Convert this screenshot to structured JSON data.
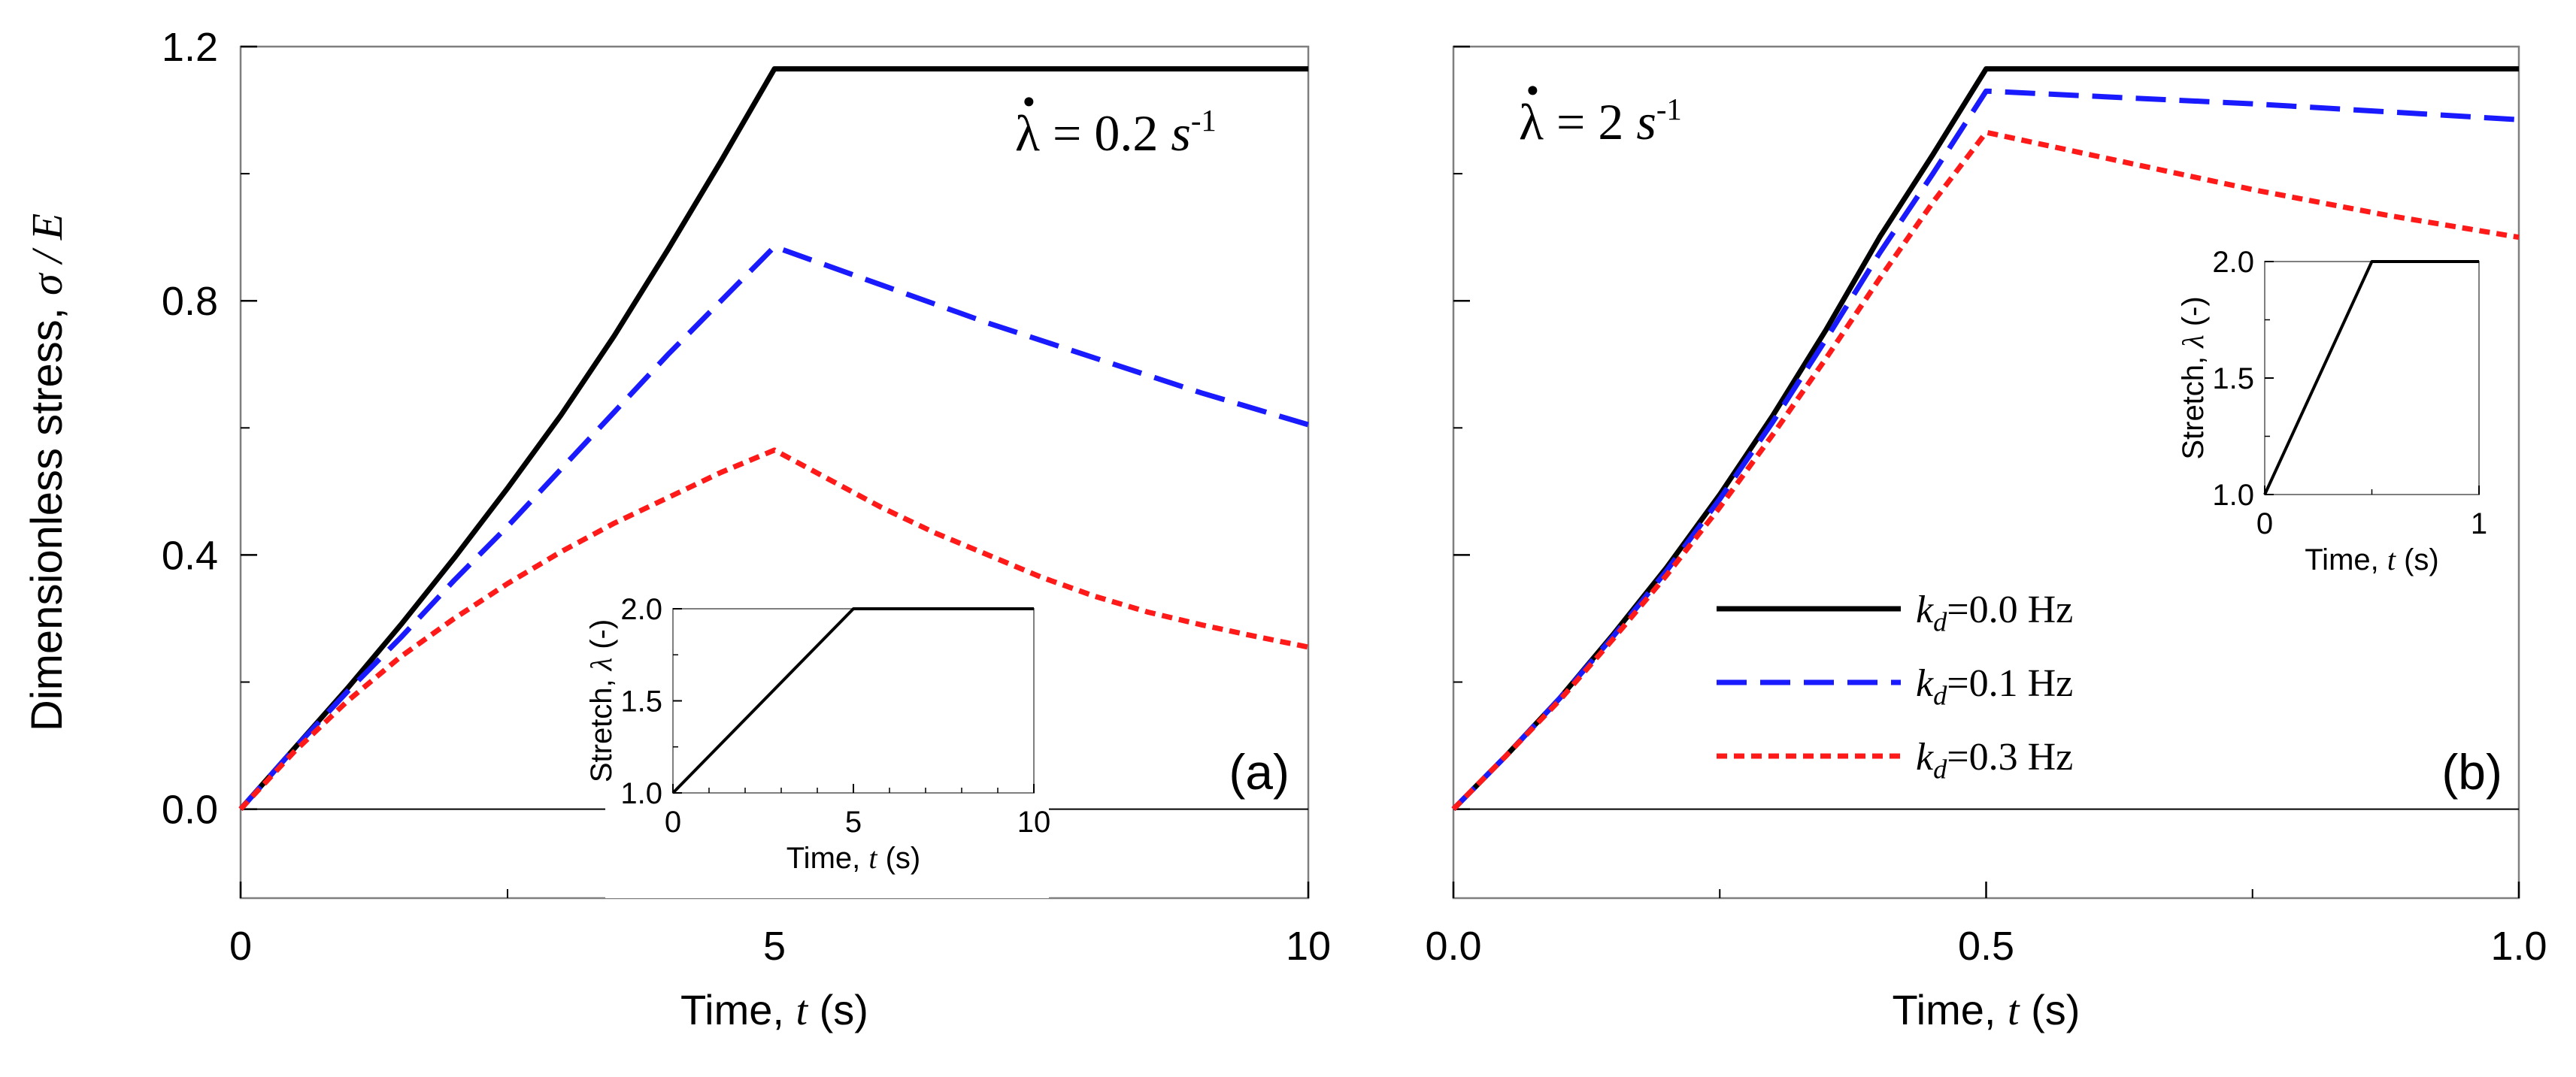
{
  "chart_data": [
    {
      "id": "panel-a",
      "type": "line",
      "panel_label": "(a)",
      "rate_label": {
        "symbol": "λ",
        "text": "= 0.2 ",
        "unit": "s",
        "exponent": "-1"
      },
      "xlabel": {
        "prefix": "Time, ",
        "var": "t",
        "unit": " (s)"
      },
      "ylabel": {
        "prefix": "Dimensionless stress, ",
        "var": "σ / E"
      },
      "xlim": [
        0,
        10
      ],
      "ylim": [
        -0.14,
        1.2
      ],
      "x_ticks": [
        0,
        5,
        10
      ],
      "x_tick_labels": [
        "0",
        "5",
        "10"
      ],
      "x_minor_ticks": [
        2.5,
        7.5
      ],
      "y_ticks": [
        0.0,
        0.4,
        0.8,
        1.2
      ],
      "y_tick_labels": [
        "0.0",
        "0.4",
        "0.8",
        "1.2"
      ],
      "y_minor_ticks": [
        0.2,
        0.6,
        1.0
      ],
      "zero_line": true,
      "series": [
        {
          "name": "k_d=0.0 Hz",
          "style": "solid",
          "color": "#000000",
          "x": [
            0,
            0.5,
            1,
            1.5,
            2,
            2.5,
            3,
            3.5,
            4,
            4.5,
            5,
            10
          ],
          "y": [
            0,
            0.095,
            0.19,
            0.29,
            0.395,
            0.505,
            0.62,
            0.745,
            0.88,
            1.02,
            1.165,
            1.165
          ]
        },
        {
          "name": "k_d=0.1 Hz",
          "style": "dashed",
          "color": "#1a1aff",
          "x": [
            0,
            0.5,
            1,
            1.5,
            2,
            2.5,
            3,
            3.5,
            4,
            4.5,
            5,
            6,
            7,
            8,
            9,
            10
          ],
          "y": [
            0,
            0.095,
            0.185,
            0.27,
            0.36,
            0.445,
            0.535,
            0.625,
            0.715,
            0.8,
            0.885,
            0.825,
            0.765,
            0.71,
            0.655,
            0.605
          ]
        },
        {
          "name": "k_d=0.3 Hz",
          "style": "dotted",
          "color": "#ff1a1a",
          "x": [
            0,
            0.5,
            1,
            1.5,
            2,
            2.5,
            3,
            3.5,
            4,
            4.5,
            5,
            5.5,
            6,
            6.5,
            7,
            7.5,
            8,
            8.5,
            9,
            9.5,
            10
          ],
          "y": [
            0,
            0.09,
            0.17,
            0.24,
            0.3,
            0.355,
            0.405,
            0.45,
            0.49,
            0.53,
            0.565,
            0.52,
            0.475,
            0.435,
            0.4,
            0.365,
            0.335,
            0.31,
            0.29,
            0.272,
            0.255
          ]
        }
      ],
      "inset": {
        "xlabel": {
          "prefix": "Time, ",
          "var": "t",
          "unit": " (s)"
        },
        "ylabel": {
          "prefix": "Stretch, ",
          "var": "λ",
          "unit": " (-)"
        },
        "xlim": [
          0,
          10
        ],
        "ylim": [
          1.0,
          2.0
        ],
        "x_ticks": [
          0,
          5,
          10
        ],
        "x_tick_labels": [
          "0",
          "5",
          "10"
        ],
        "x_minor_ticks": [
          1,
          2,
          3,
          4,
          6,
          7,
          8,
          9
        ],
        "y_ticks": [
          1.0,
          1.5,
          2.0
        ],
        "y_tick_labels": [
          "1.0",
          "1.5",
          "2.0"
        ],
        "y_minor_ticks": [
          1.25,
          1.75
        ],
        "x": [
          0,
          5,
          10
        ],
        "y": [
          1.0,
          2.0,
          2.0
        ]
      }
    },
    {
      "id": "panel-b",
      "type": "line",
      "panel_label": "(b)",
      "rate_label": {
        "symbol": "λ",
        "text": "= 2 ",
        "unit": "s",
        "exponent": "-1"
      },
      "xlabel": {
        "prefix": "Time, ",
        "var": "t",
        "unit": " (s)"
      },
      "xlim": [
        0,
        1.0
      ],
      "ylim": [
        -0.14,
        1.2
      ],
      "x_ticks": [
        0,
        0.5,
        1.0
      ],
      "x_tick_labels": [
        "0.0",
        "0.5",
        "1.0"
      ],
      "x_minor_ticks": [
        0.25,
        0.75
      ],
      "y_ticks": [
        0.0,
        0.4,
        0.8,
        1.2
      ],
      "y_minor_ticks": [
        0.2,
        0.6,
        1.0
      ],
      "zero_line": true,
      "legend": {
        "position": "center-right",
        "entries": [
          {
            "symbol": "k",
            "sub": "d",
            "text": "=0.0 Hz",
            "style": "solid",
            "color": "#000000"
          },
          {
            "symbol": "k",
            "sub": "d",
            "text": "=0.1 Hz",
            "style": "dashed",
            "color": "#1a1aff"
          },
          {
            "symbol": "k",
            "sub": "d",
            "text": "=0.3 Hz",
            "style": "dotted",
            "color": "#ff1a1a"
          }
        ]
      },
      "series": [
        {
          "name": "k_d=0.0 Hz",
          "style": "solid",
          "color": "#000000",
          "x": [
            0,
            0.05,
            0.1,
            0.15,
            0.2,
            0.25,
            0.3,
            0.35,
            0.4,
            0.45,
            0.5,
            1.0
          ],
          "y": [
            0,
            0.085,
            0.175,
            0.275,
            0.38,
            0.495,
            0.62,
            0.755,
            0.9,
            1.03,
            1.165,
            1.165
          ]
        },
        {
          "name": "k_d=0.1 Hz",
          "style": "dashed",
          "color": "#1a1aff",
          "x": [
            0,
            0.05,
            0.1,
            0.15,
            0.2,
            0.25,
            0.3,
            0.35,
            0.4,
            0.45,
            0.5,
            0.75,
            1.0
          ],
          "y": [
            0,
            0.085,
            0.175,
            0.272,
            0.375,
            0.488,
            0.61,
            0.74,
            0.875,
            1.0,
            1.13,
            1.11,
            1.085
          ]
        },
        {
          "name": "k_d=0.3 Hz",
          "style": "dotted",
          "color": "#ff1a1a",
          "x": [
            0,
            0.05,
            0.1,
            0.15,
            0.2,
            0.25,
            0.3,
            0.35,
            0.4,
            0.45,
            0.5,
            0.625,
            0.75,
            0.875,
            1.0
          ],
          "y": [
            0,
            0.085,
            0.172,
            0.268,
            0.368,
            0.475,
            0.59,
            0.71,
            0.835,
            0.955,
            1.065,
            1.02,
            0.975,
            0.935,
            0.9
          ]
        }
      ],
      "inset": {
        "xlabel": {
          "prefix": "Time, ",
          "var": "t",
          "unit": " (s)"
        },
        "ylabel": {
          "prefix": "Stretch, ",
          "var": "λ",
          "unit": " (-)"
        },
        "xlim": [
          0,
          1.0
        ],
        "ylim": [
          1.0,
          2.0
        ],
        "x_ticks": [
          0,
          1
        ],
        "x_tick_labels": [
          "0",
          "1"
        ],
        "x_minor_ticks": [
          0.5
        ],
        "y_ticks": [
          1.0,
          1.5,
          2.0
        ],
        "y_tick_labels": [
          "1.0",
          "1.5",
          "2.0"
        ],
        "y_minor_ticks": [
          1.25,
          1.75
        ],
        "x": [
          0,
          0.5,
          1.0
        ],
        "y": [
          1.0,
          2.0,
          2.0
        ]
      }
    }
  ]
}
